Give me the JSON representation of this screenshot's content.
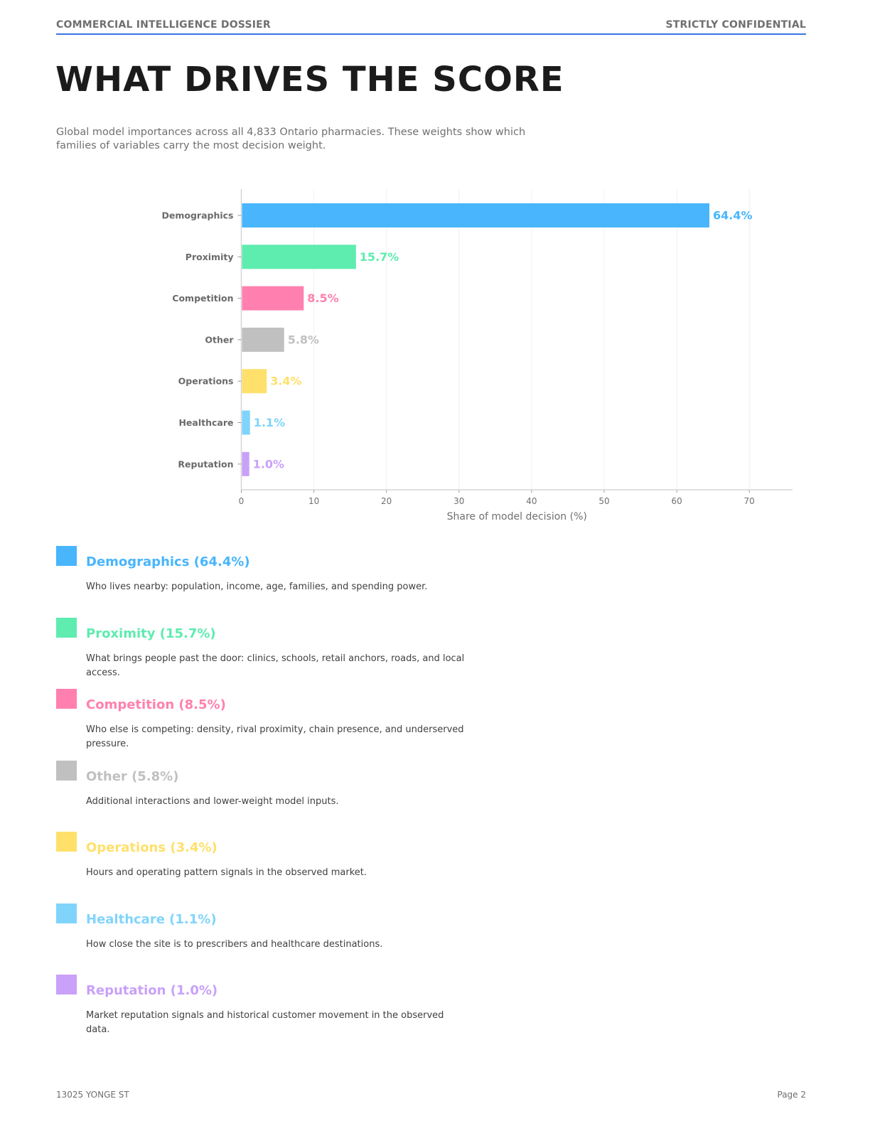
{
  "header": {
    "left": "COMMERCIAL INTELLIGENCE DOSSIER",
    "right": "STRICTLY CONFIDENTIAL"
  },
  "page_title": "WHAT DRIVES THE SCORE",
  "intro": "Global model importances across all 4,833 Ontario pharmacies. These weights show which families of variables carry the most decision weight.",
  "chart_data": {
    "type": "bar",
    "orientation": "horizontal",
    "categories": [
      "Demographics",
      "Proximity",
      "Competition",
      "Other",
      "Operations",
      "Healthcare",
      "Reputation"
    ],
    "values": [
      64.4,
      15.7,
      8.5,
      5.8,
      3.4,
      1.1,
      1.0
    ],
    "value_labels": [
      "64.4%",
      "15.7%",
      "8.5%",
      "5.8%",
      "3.4%",
      "1.1%",
      "1.0%"
    ],
    "colors": [
      "#48b5fd",
      "#5eecaf",
      "#ff80ae",
      "#c0c0c0",
      "#ffe06a",
      "#80d4fc",
      "#c9a1f8"
    ],
    "xlabel": "Share of model decision (%)",
    "ylabel": "",
    "xlim": [
      0,
      76
    ],
    "xticks": [
      0,
      10,
      20,
      30,
      40,
      50,
      60,
      70
    ],
    "grid": "vertical"
  },
  "legend": [
    {
      "title": "Demographics (64.4%)",
      "desc": "Who lives nearby: population, income, age, families, and spending power.",
      "color": "#48b5fd"
    },
    {
      "title": "Proximity (15.7%)",
      "desc": "What brings people past the door: clinics, schools, retail anchors, roads, and local access.",
      "color": "#5eecaf"
    },
    {
      "title": "Competition (8.5%)",
      "desc": "Who else is competing: density, rival proximity, chain presence, and underserved pressure.",
      "color": "#ff80ae"
    },
    {
      "title": "Other (5.8%)",
      "desc": "Additional interactions and lower-weight model inputs.",
      "color": "#c0c0c0"
    },
    {
      "title": "Operations (3.4%)",
      "desc": "Hours and operating pattern signals in the observed market.",
      "color": "#ffe06a"
    },
    {
      "title": "Healthcare (1.1%)",
      "desc": "How close the site is to prescribers and healthcare destinations.",
      "color": "#80d4fc"
    },
    {
      "title": "Reputation (1.0%)",
      "desc": "Market reputation signals and historical customer movement in the observed data.",
      "color": "#c9a1f8"
    }
  ],
  "footer": {
    "left": "13025 YONGE ST",
    "right": "Page 2"
  }
}
